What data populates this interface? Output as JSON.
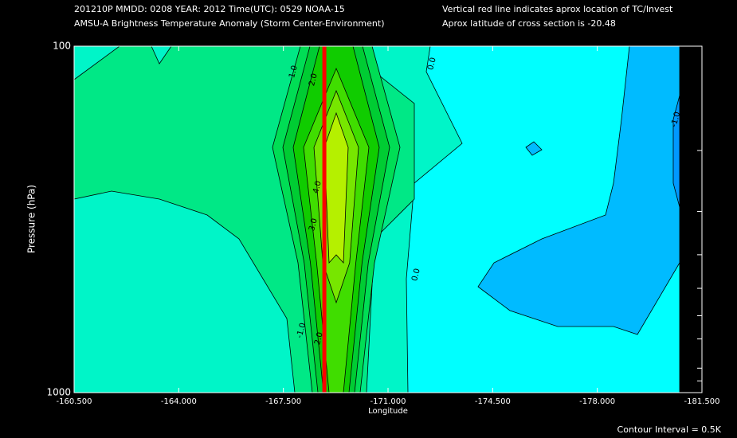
{
  "chart_data": {
    "type": "contour",
    "header_left": [
      "201210P  MMDD: 0208 YEAR: 2012 Time(UTC): 0529 NOAA-15",
      "AMSU-A Brightness Temperature Anomaly (Storm Center-Environment)"
    ],
    "header_right": [
      "Vertical red line indicates aprox location of TC/Invest",
      "Aprox latitude of cross section is -20.48"
    ],
    "x_label": "Longitude",
    "y_label": "Pressure (hPa)",
    "footer": "Contour Interval = 0.5K",
    "xlim": [
      -160.5,
      -181.5
    ],
    "xticks": [
      {
        "value": -160.5,
        "label": "-160.500"
      },
      {
        "value": -164,
        "label": "-164.000"
      },
      {
        "value": -167.5,
        "label": "-167.500"
      },
      {
        "value": -171,
        "label": "-171.000"
      },
      {
        "value": -174.5,
        "label": "-174.500"
      },
      {
        "value": -178,
        "label": "-178.000"
      },
      {
        "value": -181.5,
        "label": "-181.500"
      }
    ],
    "ylim": [
      100,
      1000
    ],
    "y_log": true,
    "yticks": [
      100,
      1000
    ],
    "y_minor_ticks": [
      200,
      300,
      400,
      500,
      600,
      700,
      850,
      925
    ],
    "contour_levels": [
      -1.5,
      -1,
      -0.5,
      0,
      0.5,
      1,
      1.5,
      2,
      2.5,
      3,
      3.5,
      4
    ],
    "fill_colors": [
      "#0099ff",
      "#00bbff",
      "#00ffff",
      "#00f5c8",
      "#00e886",
      "#00dd55",
      "#00cc33",
      "#10cc00",
      "#40dd00",
      "#77e600",
      "#b5f000"
    ],
    "tc_longitude": -168.87,
    "tc_color": "#ff0000",
    "contour_labels": [
      "1.0",
      "2.0",
      "0.0",
      "-1.0",
      "4.0",
      "3.0",
      "0.0",
      "-1.0",
      "2.0"
    ]
  }
}
